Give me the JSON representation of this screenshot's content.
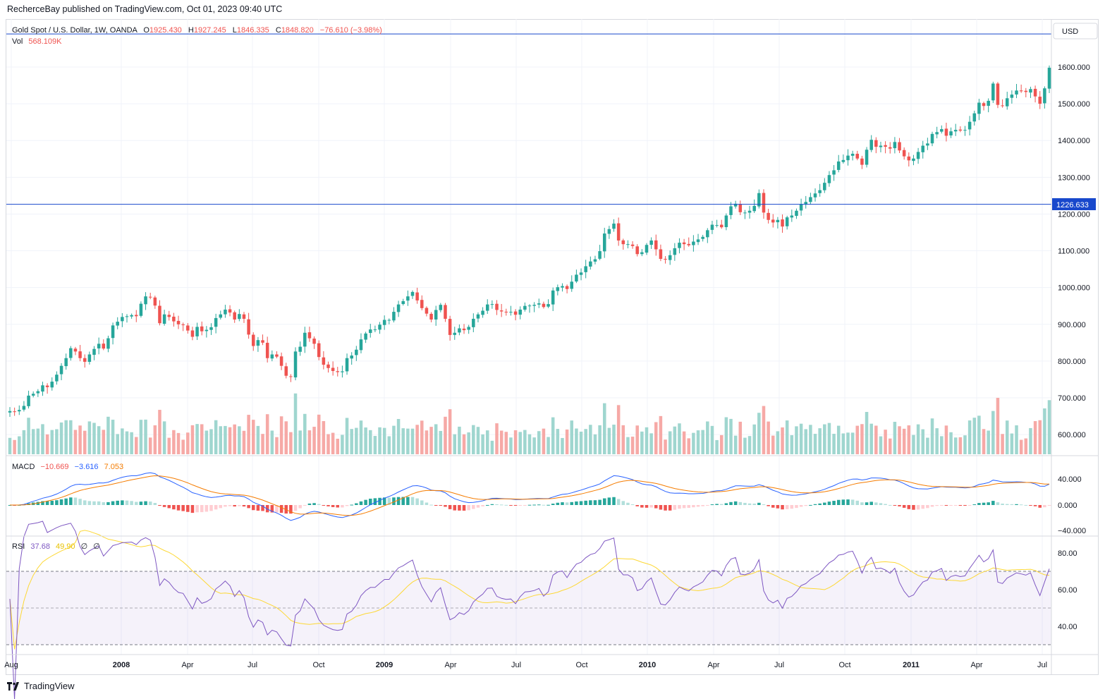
{
  "header": {
    "publisher": "RecherceBay published on TradingView.com, Oct 01, 2023 09:40 UTC"
  },
  "legend": {
    "symbol": "Gold Spot / U.S. Dollar, 1W, OANDA",
    "open_label": "O",
    "open": "1925.430",
    "high_label": "H",
    "high": "1927.245",
    "low_label": "L",
    "low": "1846.335",
    "close_label": "C",
    "close": "1848.820",
    "change": "−76.610 (−3.98%)",
    "vol_label": "Vol",
    "vol": "568.109K"
  },
  "currency_label": "USD",
  "price_marker": "1226.633",
  "macd_legend": {
    "label": "MACD",
    "hist": "−10.669",
    "macd": "−3.616",
    "signal": "7.053"
  },
  "rsi_legend": {
    "label": "RSI",
    "rsi": "37.68",
    "ma": "49.90",
    "extra1": "∅",
    "extra2": "∅"
  },
  "brand": "TradingView",
  "colors": {
    "up": "#26a69a",
    "down": "#ef5350",
    "vol_up": "#9fd6cf",
    "vol_down": "#f6a9a6",
    "macd": "#2962ff",
    "signal": "#f57c00",
    "rsi": "#7e57c2",
    "rsi_ma": "#fdd835",
    "hline": "#1848cc"
  },
  "chart_data": {
    "type": "candlestick",
    "price_axis": {
      "ticks": [
        "1600.000",
        "1500.000",
        "1400.000",
        "1300.000",
        "1200.000",
        "1100.000",
        "1000.000",
        "900.000",
        "800.000",
        "700.000",
        "600.000"
      ],
      "range": [
        535,
        1700
      ]
    },
    "time_axis": {
      "labels": [
        "Aug",
        "2008",
        "Apr",
        "Jul",
        "Oct",
        "2009",
        "Apr",
        "Jul",
        "Oct",
        "2010",
        "Apr",
        "Jul",
        "Oct",
        "2011",
        "Apr",
        "Jul"
      ]
    },
    "horizontal_lines": [
      1690,
      1226.633
    ],
    "close": [
      664,
      662,
      667,
      678,
      706,
      711,
      718,
      734,
      729,
      744,
      763,
      787,
      808,
      835,
      826,
      808,
      798,
      818,
      833,
      847,
      834,
      862,
      897,
      907,
      920,
      922,
      925,
      922,
      956,
      976,
      973,
      951,
      903,
      927,
      920,
      908,
      900,
      898,
      883,
      866,
      893,
      881,
      885,
      892,
      917,
      927,
      940,
      932,
      913,
      928,
      915,
      872,
      841,
      857,
      850,
      808,
      818,
      812,
      787,
      760,
      757,
      826,
      839,
      877,
      862,
      847,
      811,
      790,
      781,
      773,
      770,
      772,
      808,
      815,
      831,
      859,
      875,
      886,
      886,
      899,
      912,
      912,
      934,
      954,
      963,
      976,
      988,
      965,
      944,
      929,
      913,
      939,
      953,
      915,
      871,
      877,
      889,
      884,
      893,
      915,
      927,
      937,
      954,
      955,
      939,
      935,
      933,
      934,
      926,
      940,
      950,
      951,
      953,
      957,
      947,
      955,
      992,
      1001,
      1004,
      996,
      1016,
      1035,
      1041,
      1058,
      1071,
      1077,
      1099,
      1147,
      1159,
      1174,
      1128,
      1118,
      1118,
      1113,
      1091,
      1096,
      1116,
      1128,
      1104,
      1078,
      1076,
      1088,
      1107,
      1122,
      1118,
      1115,
      1125,
      1131,
      1138,
      1156,
      1171,
      1170,
      1164,
      1196,
      1221,
      1228,
      1205,
      1204,
      1209,
      1222,
      1257,
      1204,
      1184,
      1177,
      1184,
      1166,
      1191,
      1196,
      1209,
      1227,
      1233,
      1246,
      1256,
      1265,
      1285,
      1306,
      1319,
      1343,
      1347,
      1359,
      1364,
      1351,
      1334,
      1375,
      1402,
      1383,
      1386,
      1383,
      1378,
      1396,
      1373,
      1357,
      1346,
      1351,
      1369,
      1386,
      1392,
      1418,
      1423,
      1431,
      1413,
      1425,
      1429,
      1427,
      1429,
      1451,
      1474,
      1503,
      1494,
      1508,
      1555,
      1497,
      1494,
      1515,
      1525,
      1536,
      1534,
      1532,
      1540,
      1520,
      1500,
      1542,
      1598
    ]
  }
}
